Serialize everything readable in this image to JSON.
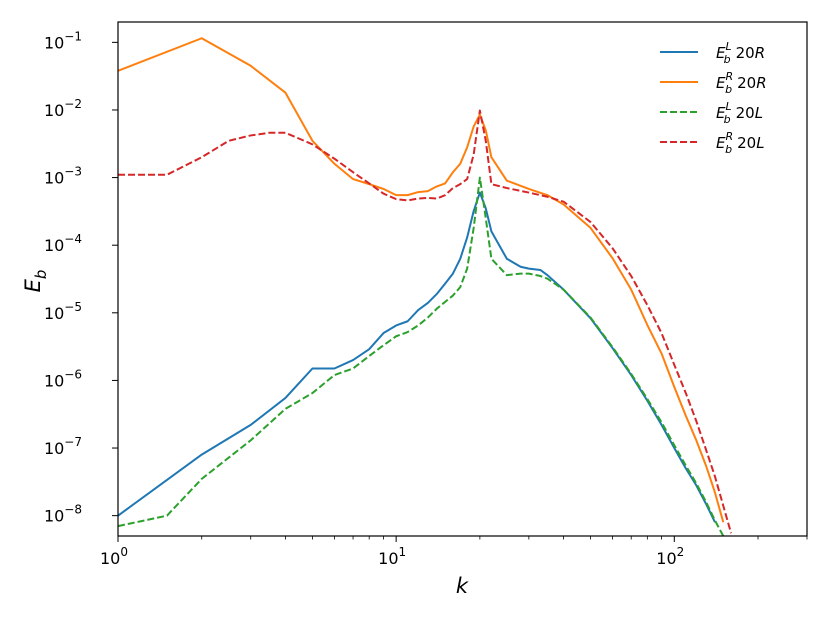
{
  "chart_data": {
    "type": "line",
    "xlabel": "k",
    "ylabel": "E_b",
    "x_scale": "log",
    "y_scale": "log",
    "xlim": [
      1,
      300
    ],
    "ylim": [
      5e-09,
      0.2
    ],
    "x_ticks": [
      {
        "value": 1,
        "base": "10",
        "exp": "0"
      },
      {
        "value": 10,
        "base": "10",
        "exp": "1"
      },
      {
        "value": 100,
        "base": "10",
        "exp": "2"
      }
    ],
    "y_ticks": [
      {
        "value": 1e-08,
        "base": "10",
        "exp": "−8"
      },
      {
        "value": 1e-07,
        "base": "10",
        "exp": "−7"
      },
      {
        "value": 1e-06,
        "base": "10",
        "exp": "−6"
      },
      {
        "value": 1e-05,
        "base": "10",
        "exp": "−5"
      },
      {
        "value": 0.0001,
        "base": "10",
        "exp": "−4"
      },
      {
        "value": 0.001,
        "base": "10",
        "exp": "−3"
      },
      {
        "value": 0.01,
        "base": "10",
        "exp": "−2"
      },
      {
        "value": 0.1,
        "base": "10",
        "exp": "−1"
      }
    ],
    "legend_position": "top-right",
    "series": [
      {
        "name": "E_b^L 20R",
        "color": "#1f77b4",
        "dashed": false,
        "x": [
          1,
          2,
          3,
          4,
          5,
          6,
          7,
          8,
          9,
          10,
          11,
          12,
          13,
          14,
          15,
          16,
          17,
          18,
          19,
          20,
          21,
          22,
          25,
          28,
          30,
          33,
          35,
          40,
          50,
          60,
          70,
          80,
          90,
          100,
          110,
          120,
          130,
          140
        ],
        "y": [
          1e-08,
          8e-08,
          2.2e-07,
          5.5e-07,
          1.5e-06,
          1.5e-06,
          2e-06,
          2.9e-06,
          5e-06,
          6.5e-06,
          7.5e-06,
          1.1e-05,
          1.4e-05,
          1.9e-05,
          2.7e-05,
          3.8e-05,
          6.3e-05,
          0.00013,
          0.00032,
          0.0006,
          0.00035,
          0.00016,
          6.3e-05,
          4.8e-05,
          4.5e-05,
          4.3e-05,
          3.6e-05,
          2.2e-05,
          8.3e-06,
          3e-06,
          1.2e-06,
          5e-07,
          2.2e-07,
          1e-07,
          5e-08,
          2.8e-08,
          1.5e-08,
          8e-09
        ]
      },
      {
        "name": "E_b^R 20R",
        "color": "#ff7f0e",
        "dashed": false,
        "x": [
          1,
          2,
          3,
          4,
          5,
          6,
          7,
          8,
          9,
          10,
          11,
          12,
          13,
          14,
          15,
          16,
          17,
          18,
          19,
          20,
          21,
          22,
          25,
          30,
          35,
          40,
          50,
          60,
          70,
          80,
          90,
          100,
          110,
          120,
          130,
          140,
          150
        ],
        "y": [
          0.038,
          0.115,
          0.045,
          0.018,
          0.0035,
          0.0016,
          0.00095,
          0.0008,
          0.00068,
          0.00055,
          0.00055,
          0.00061,
          0.00063,
          0.00074,
          0.00082,
          0.0012,
          0.0016,
          0.0028,
          0.0057,
          0.0085,
          0.005,
          0.002,
          0.0009,
          0.00068,
          0.00055,
          0.0004,
          0.00018,
          6.4e-05,
          2.2e-05,
          6.6e-06,
          2.5e-06,
          8e-07,
          3e-07,
          1.3e-07,
          5.5e-08,
          2.2e-08,
          8e-09
        ]
      },
      {
        "name": "E_b^L 20L",
        "color": "#2ca02c",
        "dashed": true,
        "x": [
          1,
          1.5,
          2,
          3,
          4,
          5,
          6,
          7,
          8,
          9,
          10,
          11,
          12,
          13,
          14,
          15,
          16,
          17,
          18,
          19,
          20,
          21,
          22,
          25,
          28,
          30,
          33,
          35,
          40,
          50,
          60,
          70,
          80,
          90,
          100,
          110,
          120,
          130,
          140,
          150
        ],
        "y": [
          7e-09,
          1e-08,
          3.5e-08,
          1.3e-07,
          3.8e-07,
          6.5e-07,
          1.2e-06,
          1.5e-06,
          2.3e-06,
          3.3e-06,
          4.5e-06,
          5.2e-06,
          6.5e-06,
          8.5e-06,
          1.15e-05,
          1.45e-05,
          1.8e-05,
          2.4e-05,
          4.5e-05,
          0.00018,
          0.001,
          0.00025,
          6.3e-05,
          3.6e-05,
          3.8e-05,
          3.8e-05,
          3.5e-05,
          3.2e-05,
          2.2e-05,
          8.5e-06,
          3.1e-06,
          1.25e-06,
          5.3e-07,
          2.4e-07,
          1.1e-07,
          5.5e-08,
          3e-08,
          1.6e-08,
          8.5e-09,
          5e-09
        ]
      },
      {
        "name": "E_b^R 20L",
        "color": "#d62728",
        "dashed": true,
        "x": [
          1,
          1.5,
          2,
          2.5,
          3,
          3.5,
          4,
          5,
          6,
          7,
          8,
          9,
          10,
          11,
          12,
          13,
          14,
          15,
          16,
          17,
          18,
          19,
          20,
          21,
          22,
          25,
          30,
          35,
          40,
          50,
          60,
          70,
          80,
          90,
          100,
          110,
          120,
          130,
          140,
          150,
          160
        ],
        "y": [
          0.0011,
          0.0011,
          0.002,
          0.0035,
          0.0042,
          0.0046,
          0.0046,
          0.0031,
          0.0019,
          0.0012,
          0.00082,
          0.00058,
          0.00048,
          0.00046,
          0.00049,
          0.0005,
          0.00049,
          0.00055,
          0.0007,
          0.0008,
          0.00095,
          0.0022,
          0.0098,
          0.0035,
          0.0008,
          0.0007,
          0.0006,
          0.00052,
          0.00044,
          0.00022,
          9e-05,
          3.5e-05,
          1.3e-05,
          5e-06,
          1.7e-06,
          6.5e-07,
          2.5e-07,
          9.5e-08,
          3.8e-08,
          1.4e-08,
          5.5e-09
        ]
      }
    ]
  }
}
